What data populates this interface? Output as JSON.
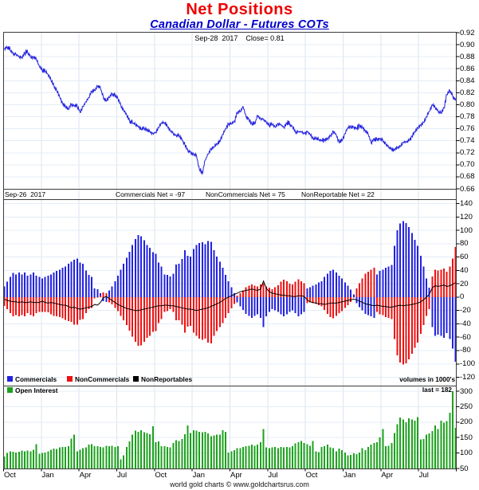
{
  "title": "Net Positions",
  "subtitle": "Canadian Dollar - Futures COTs",
  "top_annotation": "Sep-28  2017    Close= 0.81",
  "cot_header": {
    "date": "Sep-26  2017",
    "commercials": "Commercials Net = -97",
    "noncommercials": "NonCommercials Net = 75",
    "nonreportable": "NonReportable Net = 22"
  },
  "legend": {
    "commercials": "Commercials",
    "noncommercials": "NonCommercials",
    "nonreportables": "NonReportables",
    "volumes_note": "volumes in 1000's"
  },
  "oi_legend": {
    "label": "Open Interest",
    "last_note": "last = 182"
  },
  "footer": "world gold charts © www.goldchartsrus.com",
  "colors": {
    "title": "#ee0000",
    "subtitle": "#0000cc",
    "price_line": "#2121dd",
    "commercials": "#2222e0",
    "noncommercials": "#ee1111",
    "nonreportables": "#000000",
    "open_interest": "#1da11d",
    "grid_h": "#e4ecf5",
    "grid_v": "#d9e4ef",
    "frame": "#3c3c3c"
  },
  "chart_data": [
    {
      "id": "price",
      "type": "line",
      "title": "Canadian Dollar futures weekly close",
      "ylabel": "",
      "ylim": [
        0.66,
        0.921
      ],
      "yticks": [
        0.92,
        0.9,
        0.88,
        0.86,
        0.84,
        0.82,
        0.8,
        0.78,
        0.76,
        0.74,
        0.72,
        0.7,
        0.68,
        0.66
      ],
      "x_labels": [
        "Oct",
        "Jan",
        "Apr",
        "Jul",
        "Oct",
        "Jan",
        "Apr",
        "Jul",
        "Oct",
        "Jan",
        "Apr",
        "Jul"
      ],
      "grid": true,
      "legend_position": "none",
      "values": [
        0.894,
        0.896,
        0.891,
        0.885,
        0.884,
        0.88,
        0.879,
        0.886,
        0.888,
        0.879,
        0.88,
        0.876,
        0.864,
        0.857,
        0.856,
        0.85,
        0.841,
        0.832,
        0.823,
        0.813,
        0.802,
        0.797,
        0.792,
        0.801,
        0.798,
        0.799,
        0.787,
        0.797,
        0.805,
        0.812,
        0.822,
        0.824,
        0.831,
        0.828,
        0.812,
        0.806,
        0.812,
        0.818,
        0.815,
        0.811,
        0.799,
        0.79,
        0.783,
        0.774,
        0.77,
        0.767,
        0.764,
        0.759,
        0.761,
        0.757,
        0.755,
        0.752,
        0.754,
        0.762,
        0.77,
        0.77,
        0.764,
        0.757,
        0.752,
        0.749,
        0.749,
        0.742,
        0.734,
        0.724,
        0.721,
        0.717,
        0.715,
        0.692,
        0.685,
        0.708,
        0.718,
        0.726,
        0.729,
        0.735,
        0.738,
        0.751,
        0.76,
        0.768,
        0.768,
        0.773,
        0.786,
        0.789,
        0.797,
        0.781,
        0.776,
        0.768,
        0.768,
        0.782,
        0.777,
        0.776,
        0.771,
        0.765,
        0.767,
        0.763,
        0.769,
        0.767,
        0.762,
        0.77,
        0.768,
        0.763,
        0.754,
        0.755,
        0.755,
        0.752,
        0.756,
        0.751,
        0.744,
        0.744,
        0.742,
        0.74,
        0.742,
        0.743,
        0.748,
        0.756,
        0.75,
        0.737,
        0.74,
        0.752,
        0.762,
        0.763,
        0.763,
        0.761,
        0.765,
        0.762,
        0.757,
        0.751,
        0.736,
        0.743,
        0.742,
        0.744,
        0.74,
        0.735,
        0.729,
        0.727,
        0.725,
        0.728,
        0.731,
        0.737,
        0.738,
        0.74,
        0.748,
        0.755,
        0.761,
        0.766,
        0.771,
        0.78,
        0.789,
        0.8,
        0.796,
        0.789,
        0.786,
        0.795,
        0.817,
        0.824,
        0.815,
        0.807
      ]
    },
    {
      "id": "net_positions",
      "type": "bar",
      "title": "Futures COT net positions (contracts in 1000's)",
      "ylim": [
        -133,
        146
      ],
      "yticks": [
        140,
        120,
        100,
        80,
        60,
        40,
        20,
        0,
        -20,
        -40,
        -60,
        -80,
        -100,
        -120
      ],
      "x_labels": [
        "Oct",
        "Jan",
        "Apr",
        "Jul",
        "Oct",
        "Jan",
        "Apr",
        "Jul",
        "Oct",
        "Jan",
        "Apr",
        "Jul"
      ],
      "grid": true,
      "legend_position": "bottom-left",
      "series": [
        {
          "name": "Commercials",
          "type": "bar",
          "values": [
            16,
            23,
            30,
            36,
            34,
            37,
            34,
            37,
            32,
            34,
            37,
            32,
            30,
            28,
            30,
            32,
            34,
            37,
            39,
            41,
            44,
            46,
            50,
            53,
            56,
            58,
            52,
            50,
            40,
            33,
            30,
            13,
            12,
            6,
            -6,
            -7,
            10,
            16,
            24,
            32,
            41,
            50,
            59,
            68,
            78,
            87,
            93,
            91,
            85,
            78,
            74,
            67,
            65,
            52,
            46,
            34,
            33,
            31,
            35,
            49,
            50,
            57,
            70,
            62,
            61,
            72,
            78,
            81,
            82,
            79,
            84,
            83,
            70,
            61,
            53,
            44,
            33,
            24,
            15,
            6,
            -8,
            -14,
            -19,
            -25,
            -28,
            -31,
            -28,
            -26,
            -31,
            -45,
            -29,
            -22,
            -18,
            -20,
            -22,
            -26,
            -29,
            -26,
            -22,
            -20,
            -24,
            -29,
            -26,
            -22,
            13,
            15,
            17,
            19,
            22,
            24,
            30,
            35,
            39,
            41,
            37,
            32,
            28,
            22,
            17,
            11,
            4,
            -9,
            -15,
            -20,
            -25,
            -27,
            -29,
            -31,
            34,
            39,
            41,
            44,
            46,
            48,
            77,
            100,
            110,
            114,
            111,
            105,
            96,
            86,
            77,
            62,
            46,
            28,
            14,
            -45,
            -58,
            -56,
            -58,
            -61,
            -54,
            -63,
            -77,
            -97
          ]
        },
        {
          "name": "NonCommercials",
          "type": "bar",
          "values": [
            -13,
            -18,
            -24,
            -29,
            -27,
            -29,
            -27,
            -29,
            -24,
            -27,
            -29,
            -24,
            -22,
            -22,
            -22,
            -23,
            -26,
            -28,
            -29,
            -30,
            -32,
            -34,
            -36,
            -37,
            -41,
            -41,
            -34,
            -33,
            -24,
            -18,
            -16,
            -2,
            0,
            2,
            7,
            6,
            -8,
            -11,
            -16,
            -21,
            -28,
            -35,
            -42,
            -50,
            -59,
            -67,
            -73,
            -72,
            -67,
            -61,
            -58,
            -52,
            -51,
            -39,
            -33,
            -22,
            -21,
            -18,
            -22,
            -35,
            -35,
            -41,
            -53,
            -44,
            -43,
            -53,
            -58,
            -62,
            -64,
            -62,
            -68,
            -69,
            -58,
            -51,
            -45,
            -39,
            -31,
            -24,
            -17,
            -10,
            2,
            6,
            10,
            15,
            17,
            19,
            17,
            16,
            19,
            21,
            16,
            14,
            12,
            15,
            18,
            23,
            26,
            24,
            20,
            19,
            23,
            27,
            24,
            21,
            -9,
            -8,
            -9,
            -10,
            -12,
            -14,
            -19,
            -25,
            -30,
            -32,
            -28,
            -24,
            -21,
            -16,
            -12,
            -7,
            -1,
            13,
            21,
            28,
            35,
            38,
            41,
            44,
            -22,
            -26,
            -27,
            -30,
            -31,
            -33,
            -63,
            -87,
            -98,
            -101,
            -99,
            -93,
            -85,
            -76,
            -68,
            -55,
            -42,
            -28,
            -18,
            31,
            41,
            40,
            41,
            43,
            38,
            46,
            58,
            75
          ]
        },
        {
          "name": "NonReportables",
          "type": "line",
          "values": [
            -3,
            -5,
            -6,
            -7,
            -7,
            -8,
            -7,
            -8,
            -8,
            -7,
            -8,
            -8,
            -8,
            -6,
            -8,
            -9,
            -8,
            -9,
            -10,
            -11,
            -12,
            -12,
            -14,
            -16,
            -15,
            -17,
            -18,
            -17,
            -16,
            -15,
            -14,
            -11,
            -12,
            -8,
            -1,
            1,
            -2,
            -5,
            -8,
            -11,
            -13,
            -15,
            -17,
            -18,
            -19,
            -20,
            -20,
            -19,
            -18,
            -17,
            -16,
            -15,
            -14,
            -13,
            -13,
            -12,
            -12,
            -13,
            -13,
            -14,
            -15,
            -16,
            -17,
            -18,
            -18,
            -19,
            -20,
            -19,
            -18,
            -17,
            -16,
            -14,
            -12,
            -10,
            -8,
            -5,
            -2,
            0,
            2,
            4,
            6,
            8,
            9,
            10,
            11,
            12,
            11,
            10,
            12,
            24,
            13,
            8,
            6,
            5,
            4,
            3,
            3,
            2,
            2,
            1,
            1,
            2,
            2,
            1,
            -4,
            -7,
            -8,
            -9,
            -10,
            -10,
            -11,
            -10,
            -9,
            -9,
            -9,
            -8,
            -7,
            -6,
            -5,
            -4,
            -3,
            -4,
            -6,
            -8,
            -10,
            -11,
            -12,
            -13,
            -12,
            -13,
            -14,
            -14,
            -15,
            -15,
            -14,
            -13,
            -12,
            -13,
            -12,
            -12,
            -11,
            -10,
            -9,
            -7,
            -4,
            0,
            4,
            14,
            17,
            16,
            17,
            18,
            16,
            17,
            19,
            22
          ]
        }
      ]
    },
    {
      "id": "open_interest",
      "type": "bar",
      "title": "Open Interest (volumes in 1000's)",
      "ylim": [
        50,
        318
      ],
      "yticks": [
        300,
        250,
        200,
        150,
        100,
        50
      ],
      "x_labels": [
        "Oct",
        "Jan",
        "Apr",
        "Jul",
        "Oct",
        "Jan",
        "Apr",
        "Jul",
        "Oct",
        "Jan",
        "Apr",
        "Jul"
      ],
      "grid": true,
      "legend_position": "top-left",
      "last_value": 182,
      "values": [
        89,
        100,
        106,
        104,
        102,
        104,
        108,
        106,
        108,
        106,
        110,
        128,
        98,
        100,
        102,
        106,
        110,
        114,
        113,
        118,
        120,
        120,
        122,
        147,
        159,
        106,
        110,
        116,
        118,
        127,
        129,
        122,
        122,
        120,
        118,
        124,
        122,
        124,
        120,
        122,
        80,
        92,
        120,
        137,
        159,
        172,
        169,
        174,
        167,
        165,
        161,
        187,
        135,
        137,
        122,
        122,
        120,
        118,
        133,
        142,
        139,
        146,
        161,
        189,
        165,
        174,
        172,
        169,
        167,
        169,
        163,
        154,
        157,
        159,
        159,
        174,
        169,
        101,
        105,
        109,
        116,
        116,
        120,
        122,
        124,
        127,
        124,
        127,
        135,
        178,
        118,
        116,
        118,
        120,
        116,
        120,
        118,
        120,
        118,
        122,
        131,
        135,
        139,
        133,
        129,
        124,
        139,
        105,
        103,
        120,
        122,
        127,
        118,
        116,
        105,
        114,
        109,
        101,
        92,
        94,
        99,
        97,
        101,
        116,
        109,
        120,
        127,
        133,
        135,
        150,
        178,
        122,
        124,
        133,
        165,
        193,
        215,
        209,
        200,
        212,
        209,
        205,
        216,
        144,
        146,
        159,
        164,
        171,
        189,
        178,
        205,
        198,
        203,
        230,
        300,
        182
      ]
    }
  ]
}
